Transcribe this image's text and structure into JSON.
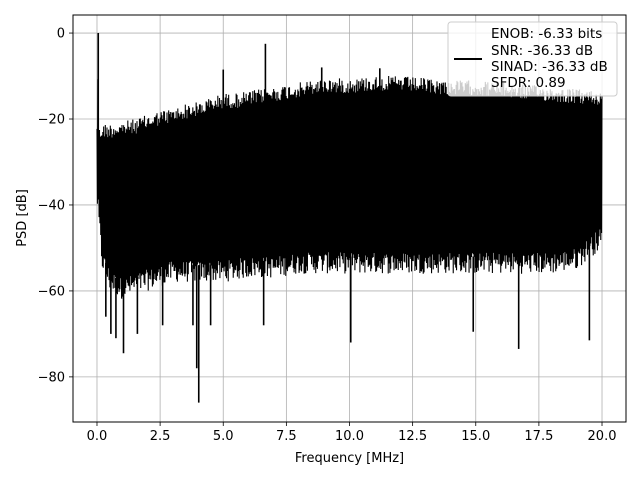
{
  "chart_data": {
    "type": "line",
    "title": "",
    "xlabel": "Frequency [MHz]",
    "ylabel": "PSD [dB]",
    "xlim": [
      -0.95,
      20.95
    ],
    "ylim": [
      -90.5,
      4.2
    ],
    "grid": true,
    "x_ticks": [
      0.0,
      2.5,
      5.0,
      7.5,
      10.0,
      12.5,
      15.0,
      17.5,
      20.0
    ],
    "x_tick_labels": [
      "0.0",
      "2.5",
      "5.0",
      "7.5",
      "10.0",
      "12.5",
      "15.0",
      "17.5",
      "20.0"
    ],
    "y_ticks": [
      0,
      -20,
      -40,
      -60,
      -80
    ],
    "y_tick_labels": [
      "0",
      "−20",
      "−40",
      "−60",
      "−80"
    ],
    "legend": {
      "placement": "top-right",
      "entries": [
        "ENOB: -6.33 bits",
        "SNR: -36.33 dB",
        "SINAD: -36.33 dB",
        "SFDR: 0.89"
      ]
    },
    "series": [
      {
        "color": "#000000",
        "upper_envelope": {
          "x": [
            0.0,
            0.02,
            0.06,
            0.1,
            0.2,
            0.5,
            1.0,
            1.5,
            2.0,
            2.5,
            3.0,
            3.5,
            4.0,
            4.5,
            5.0,
            5.5,
            6.0,
            6.5,
            7.0,
            7.5,
            8.0,
            8.5,
            9.0,
            9.5,
            10.0,
            11.0,
            12.0,
            13.0,
            14.0,
            15.0,
            16.0,
            17.0,
            18.0,
            19.0,
            20.0
          ],
          "y": [
            -20,
            -3,
            -20,
            -22,
            -21,
            -21,
            -20.5,
            -20,
            -19,
            -18,
            -17.5,
            -16.5,
            -16,
            -15,
            -14,
            -14,
            -13.5,
            -13,
            -12.5,
            -12,
            -11.5,
            -11,
            -10.5,
            -10.5,
            -10.5,
            -10,
            -10,
            -10.5,
            -11,
            -11,
            -11.5,
            -12,
            -12.5,
            -13,
            -13.5
          ]
        },
        "lower_envelope": {
          "x": [
            0.0,
            0.2,
            0.5,
            1.0,
            1.5,
            2.0,
            3.0,
            4.0,
            5.0,
            6.0,
            7.0,
            8.0,
            9.0,
            10.0,
            11.0,
            12.0,
            13.0,
            14.0,
            15.0,
            16.0,
            17.0,
            18.0,
            19.0,
            20.0
          ],
          "y": [
            -40,
            -55,
            -60,
            -62,
            -61,
            -60,
            -58,
            -58,
            -58,
            -57,
            -57,
            -56,
            -56,
            -56,
            -56,
            -56,
            -56,
            -56,
            -56,
            -56,
            -56,
            -56,
            -55,
            -50
          ]
        },
        "spikes": [
          {
            "x": 0.05,
            "y": 0.0
          },
          {
            "x": 5.0,
            "y": -8.5
          },
          {
            "x": 6.67,
            "y": -2.5
          },
          {
            "x": 8.9,
            "y": -8.0
          },
          {
            "x": 11.2,
            "y": -8.2
          }
        ],
        "dips": [
          {
            "x": 0.35,
            "y": -66
          },
          {
            "x": 0.55,
            "y": -70
          },
          {
            "x": 0.75,
            "y": -71
          },
          {
            "x": 1.05,
            "y": -74.5
          },
          {
            "x": 1.6,
            "y": -70
          },
          {
            "x": 2.6,
            "y": -68
          },
          {
            "x": 3.8,
            "y": -68
          },
          {
            "x": 3.95,
            "y": -78
          },
          {
            "x": 4.03,
            "y": -86
          },
          {
            "x": 4.5,
            "y": -68
          },
          {
            "x": 6.6,
            "y": -68
          },
          {
            "x": 10.05,
            "y": -72
          },
          {
            "x": 14.9,
            "y": -69.5
          },
          {
            "x": 16.7,
            "y": -73.5
          },
          {
            "x": 19.5,
            "y": -71.5
          }
        ]
      }
    ]
  }
}
